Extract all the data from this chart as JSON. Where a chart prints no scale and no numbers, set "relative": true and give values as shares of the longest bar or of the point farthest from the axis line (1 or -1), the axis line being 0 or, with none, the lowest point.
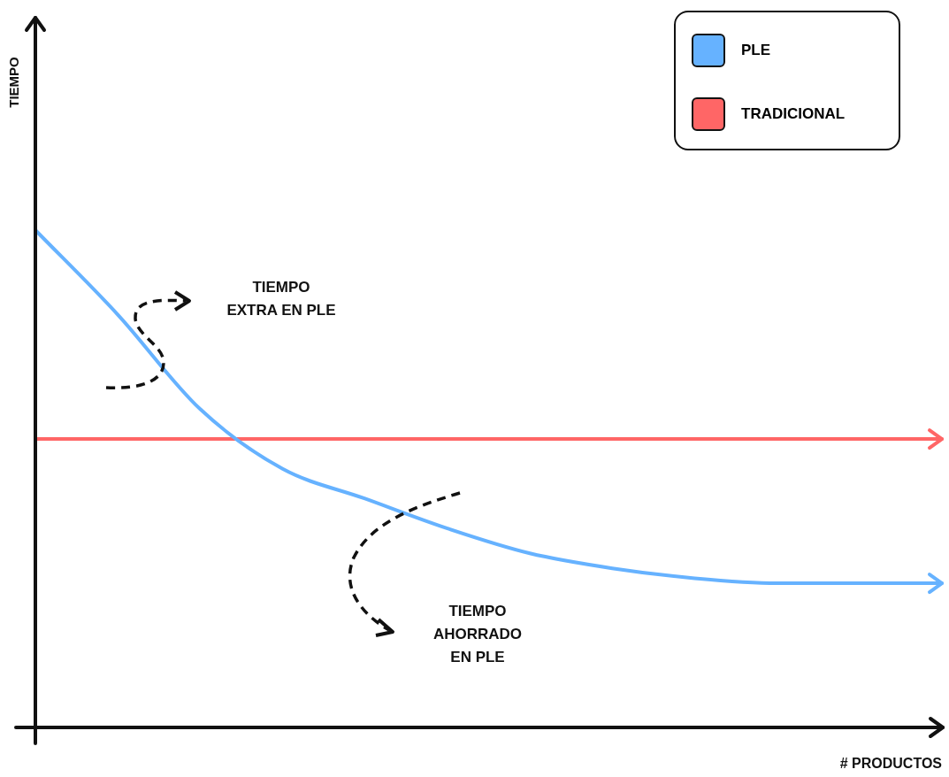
{
  "chart_data": {
    "type": "line",
    "relative": true,
    "xlabel": "# PRODUCTOS",
    "legend": "top right",
    "marker": "none",
    "categories": [
      null,
      null,
      null,
      null,
      null,
      null,
      null,
      null,
      null,
      null,
      null,
      null
    ],
    "series": [
      {
        "name": "PLE",
        "color": "#66b2ff",
        "values": [
          1,
          0.83,
          0.64,
          0.52,
          0.46,
          0.4,
          0.35,
          0.32,
          0.3,
          0.29,
          0.29,
          0.29
        ]
      },
      {
        "name": "TRADICIONAL",
        "color": "#ff6666",
        "values": [
          0.58,
          0.58,
          0.58,
          0.58,
          0.58,
          0.58,
          0.58,
          0.58,
          0.58,
          0.58,
          0.58,
          0.58
        ]
      }
    ],
    "annotations": [
      "TIEMPO\nEXTRA EN PLE",
      "TIEMPO\nAHORRADO\nEN PLE",
      "TIEMPO"
    ]
  }
}
